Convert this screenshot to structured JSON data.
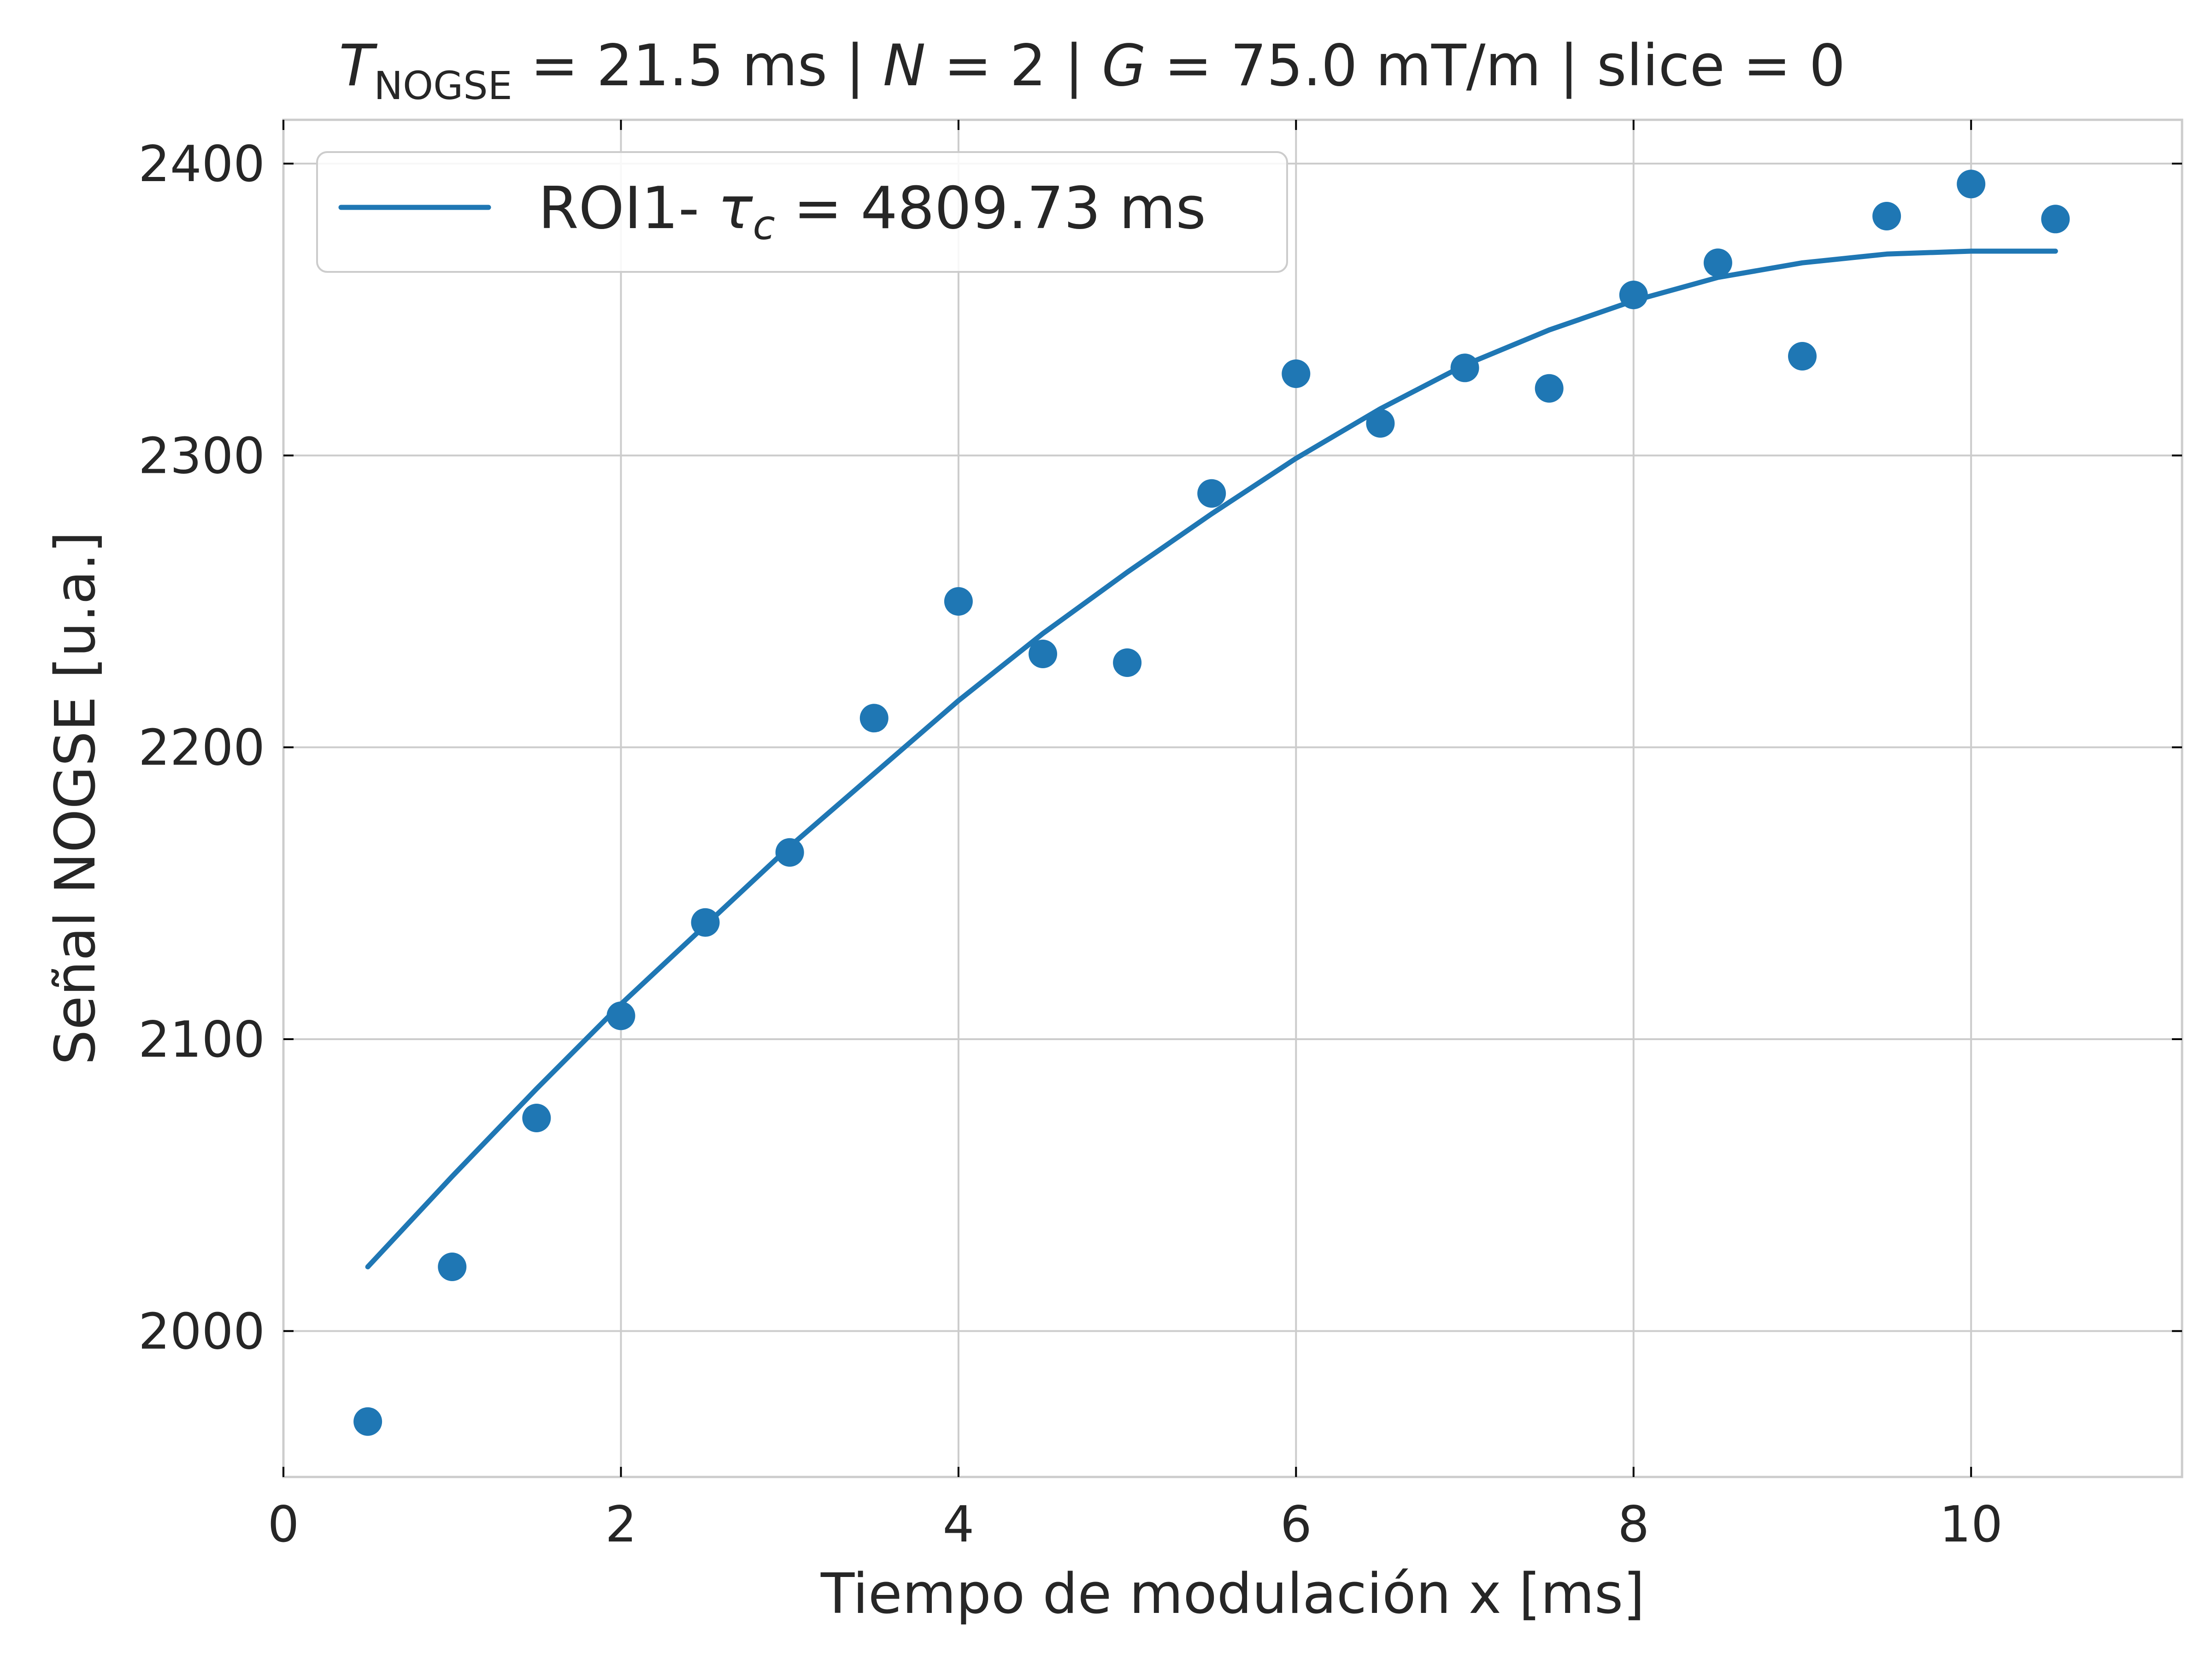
{
  "chart_data": {
    "type": "scatter",
    "title": {
      "italic_symbol": "T",
      "subscript": "NOGSE",
      "part1": " = 21.5 ms | ",
      "n_symbol": "N",
      "part2": " = 2 | ",
      "g_symbol": "G",
      "part3": " = 75.0 mT/m | slice = 0"
    },
    "xlabel": "Tiempo de modulación x [ms]",
    "ylabel": "Señal NOGSE [u.a.]",
    "xlim": [
      0,
      11.25
    ],
    "ylim": [
      1950,
      2415
    ],
    "xticks": [
      0,
      2,
      4,
      6,
      8,
      10
    ],
    "yticks": [
      2000,
      2100,
      2200,
      2300,
      2400
    ],
    "grid": true,
    "legend_position": "top-left",
    "color": "#1f77b4",
    "legend": {
      "prefix": "ROI1- ",
      "tau_symbol": "τ",
      "tau_subscript": "c",
      "suffix": " = 4809.73 ms"
    },
    "series": [
      {
        "kind": "points",
        "x": [
          0.5,
          1.0,
          1.5,
          2.0,
          2.5,
          3.0,
          3.5,
          4.0,
          4.5,
          5.0,
          5.5,
          6.0,
          6.5,
          7.0,
          7.5,
          8.0,
          8.5,
          9.0,
          9.5,
          10.0,
          10.5
        ],
        "y": [
          1969,
          2022,
          2073,
          2108,
          2140,
          2164,
          2210,
          2250,
          2232,
          2229,
          2287,
          2328,
          2311,
          2330,
          2323,
          2355,
          2366,
          2334,
          2382,
          2393,
          2381
        ]
      },
      {
        "kind": "fit",
        "x": [
          0.5,
          1.0,
          1.5,
          2.0,
          2.5,
          3.0,
          3.5,
          4.0,
          4.5,
          5.0,
          5.5,
          6.0,
          6.5,
          7.0,
          7.5,
          8.0,
          8.5,
          9.0,
          9.5,
          10.0,
          10.5
        ],
        "y": [
          2022,
          2053,
          2083,
          2112,
          2139,
          2166,
          2191,
          2216,
          2239,
          2260,
          2280,
          2299,
          2316,
          2331,
          2343,
          2353,
          2361,
          2366,
          2369,
          2370,
          2370
        ]
      }
    ]
  }
}
